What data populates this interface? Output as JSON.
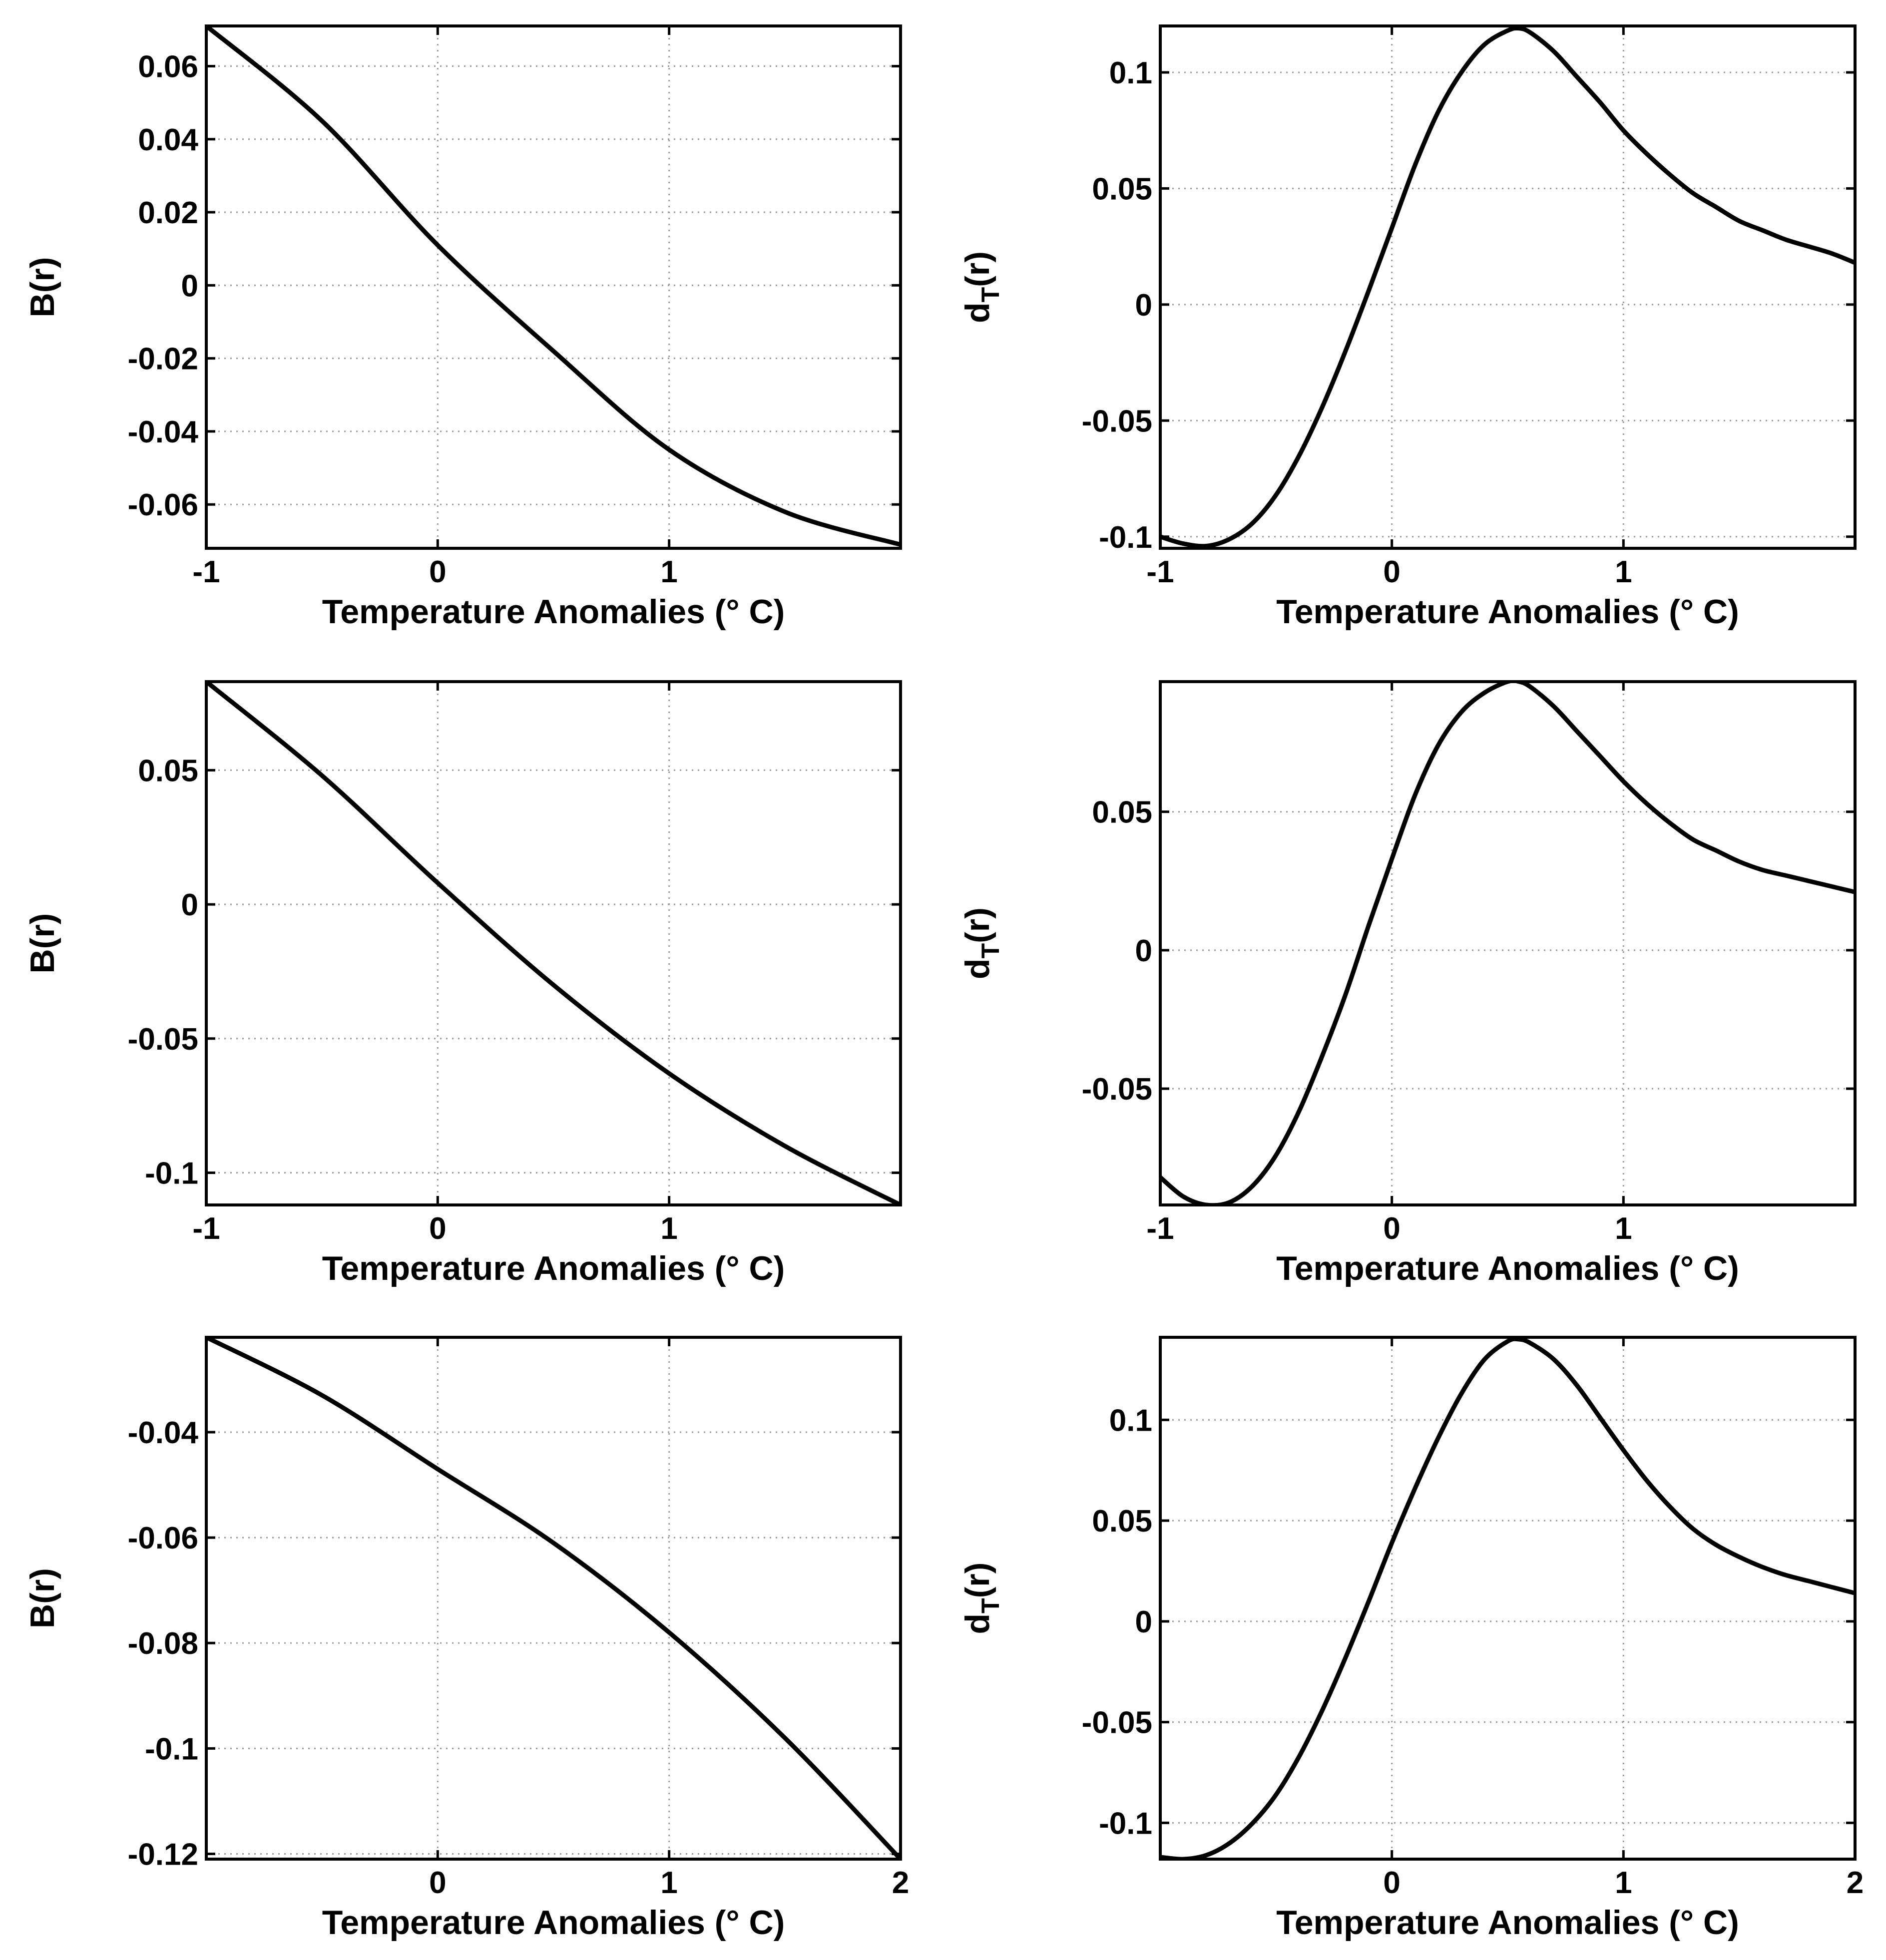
{
  "chart_data": [
    {
      "type": "line",
      "ylabel": "B(r)",
      "xlabel": "Temperature Anomalies (° C)",
      "xlim": [
        -1,
        2
      ],
      "ylim": [
        -0.072,
        0.071
      ],
      "xticks": [
        -1,
        0,
        1
      ],
      "xtick_labels": [
        "-1",
        "0",
        "1"
      ],
      "yticks": [
        0.06,
        0.04,
        0.02,
        0,
        -0.02,
        -0.04,
        -0.06
      ],
      "ytick_labels": [
        "0.06",
        "0.04",
        "0.02",
        "0",
        "-0.02",
        "-0.04",
        "-0.06"
      ],
      "grid": true,
      "series": [
        {
          "name": "B(r)",
          "x": [
            -1,
            -0.5,
            0,
            0.5,
            1,
            1.5,
            2
          ],
          "y": [
            0.071,
            0.045,
            0.011,
            -0.018,
            -0.045,
            -0.062,
            -0.071
          ]
        }
      ]
    },
    {
      "type": "line",
      "ylabel": "d_T(r)",
      "xlabel": "Temperature Anomalies (° C)",
      "xlim": [
        -1,
        2
      ],
      "ylim": [
        -0.105,
        0.12
      ],
      "xticks": [
        -1,
        0,
        1
      ],
      "xtick_labels": [
        "-1",
        "0",
        "1"
      ],
      "yticks": [
        0.1,
        0.05,
        0,
        -0.05,
        -0.1
      ],
      "ytick_labels": [
        "0.1",
        "0.05",
        "0",
        "-0.05",
        "-0.1"
      ],
      "grid": true,
      "series": [
        {
          "name": "d_T(r)",
          "x": [
            -1,
            -0.9,
            -0.8,
            -0.7,
            -0.6,
            -0.5,
            -0.4,
            -0.3,
            -0.2,
            -0.1,
            0,
            0.1,
            0.2,
            0.3,
            0.4,
            0.5,
            0.55,
            0.6,
            0.7,
            0.8,
            0.9,
            1,
            1.1,
            1.2,
            1.3,
            1.4,
            1.5,
            1.6,
            1.7,
            1.8,
            1.9,
            2
          ],
          "y": [
            -0.1,
            -0.103,
            -0.104,
            -0.101,
            -0.094,
            -0.082,
            -0.065,
            -0.044,
            -0.02,
            0.006,
            0.033,
            0.06,
            0.083,
            0.1,
            0.112,
            0.118,
            0.119,
            0.117,
            0.109,
            0.098,
            0.087,
            0.075,
            0.065,
            0.056,
            0.048,
            0.042,
            0.036,
            0.032,
            0.028,
            0.025,
            0.022,
            0.018
          ]
        }
      ]
    },
    {
      "type": "line",
      "ylabel": "B(r)",
      "xlabel": "Temperature Anomalies (° C)",
      "xlim": [
        -1,
        2
      ],
      "ylim": [
        -0.112,
        0.083
      ],
      "xticks": [
        -1,
        0,
        1
      ],
      "xtick_labels": [
        "-1",
        "0",
        "1"
      ],
      "yticks": [
        0.05,
        0,
        -0.05,
        -0.1
      ],
      "ytick_labels": [
        "0.05",
        "0",
        "-0.05",
        "-0.1"
      ],
      "grid": true,
      "series": [
        {
          "name": "B(r)",
          "x": [
            -1,
            -0.5,
            0,
            0.5,
            1,
            1.5,
            2
          ],
          "y": [
            0.083,
            0.048,
            0.008,
            -0.03,
            -0.063,
            -0.09,
            -0.112
          ]
        }
      ]
    },
    {
      "type": "line",
      "ylabel": "d_T(r)",
      "xlabel": "Temperature Anomalies (° C)",
      "xlim": [
        -1,
        2
      ],
      "ylim": [
        -0.092,
        0.097
      ],
      "xticks": [
        -1,
        0,
        1
      ],
      "xtick_labels": [
        "-1",
        "0",
        "1"
      ],
      "yticks": [
        0.05,
        0,
        -0.05
      ],
      "ytick_labels": [
        "0.05",
        "0",
        "-0.05"
      ],
      "grid": true,
      "series": [
        {
          "name": "d_T(r)",
          "x": [
            -1,
            -0.9,
            -0.8,
            -0.7,
            -0.6,
            -0.5,
            -0.4,
            -0.3,
            -0.2,
            -0.1,
            0,
            0.1,
            0.2,
            0.3,
            0.4,
            0.5,
            0.55,
            0.6,
            0.7,
            0.8,
            0.9,
            1,
            1.1,
            1.2,
            1.3,
            1.4,
            1.5,
            1.6,
            1.7,
            1.8,
            1.9,
            2
          ],
          "y": [
            -0.082,
            -0.089,
            -0.092,
            -0.091,
            -0.085,
            -0.074,
            -0.058,
            -0.038,
            -0.016,
            0.009,
            0.033,
            0.056,
            0.074,
            0.086,
            0.093,
            0.097,
            0.097,
            0.095,
            0.088,
            0.079,
            0.07,
            0.061,
            0.053,
            0.046,
            0.04,
            0.036,
            0.032,
            0.029,
            0.027,
            0.025,
            0.023,
            0.021
          ]
        }
      ]
    },
    {
      "type": "line",
      "ylabel": "B(r)",
      "xlabel": "Temperature Anomalies (° C)",
      "xlim": [
        -1,
        2
      ],
      "ylim": [
        -0.121,
        -0.022
      ],
      "xticks": [
        0,
        1,
        2
      ],
      "xtick_labels": [
        "0",
        "1",
        "2"
      ],
      "yticks": [
        -0.04,
        -0.06,
        -0.08,
        -0.1,
        -0.12
      ],
      "ytick_labels": [
        "-0.04",
        "-0.06",
        "-0.08",
        "-0.1",
        "-0.12"
      ],
      "grid": true,
      "series": [
        {
          "name": "B(r)",
          "x": [
            -1,
            -0.5,
            0,
            0.5,
            1,
            1.5,
            2
          ],
          "y": [
            -0.022,
            -0.033,
            -0.047,
            -0.061,
            -0.078,
            -0.098,
            -0.121
          ]
        }
      ]
    },
    {
      "type": "line",
      "ylabel": "d_T(r)",
      "xlabel": "Temperature Anomalies (° C)",
      "xlim": [
        -1,
        2
      ],
      "ylim": [
        -0.118,
        0.141
      ],
      "xticks": [
        0,
        1,
        2
      ],
      "xtick_labels": [
        "0",
        "1",
        "2"
      ],
      "yticks": [
        0.1,
        0.05,
        0,
        -0.05,
        -0.1
      ],
      "ytick_labels": [
        "0.1",
        "0.05",
        "0",
        "-0.05",
        "-0.1"
      ],
      "grid": true,
      "series": [
        {
          "name": "d_T(r)",
          "x": [
            -1,
            -0.9,
            -0.8,
            -0.7,
            -0.6,
            -0.5,
            -0.4,
            -0.3,
            -0.2,
            -0.1,
            0,
            0.1,
            0.2,
            0.3,
            0.4,
            0.5,
            0.55,
            0.6,
            0.7,
            0.8,
            0.9,
            1,
            1.1,
            1.2,
            1.3,
            1.4,
            1.5,
            1.6,
            1.7,
            1.8,
            1.9,
            2
          ],
          "y": [
            -0.117,
            -0.118,
            -0.116,
            -0.11,
            -0.1,
            -0.086,
            -0.067,
            -0.044,
            -0.018,
            0.01,
            0.039,
            0.066,
            0.091,
            0.113,
            0.13,
            0.139,
            0.14,
            0.138,
            0.13,
            0.117,
            0.101,
            0.085,
            0.07,
            0.057,
            0.046,
            0.038,
            0.032,
            0.027,
            0.023,
            0.02,
            0.017,
            0.014
          ]
        }
      ]
    }
  ]
}
